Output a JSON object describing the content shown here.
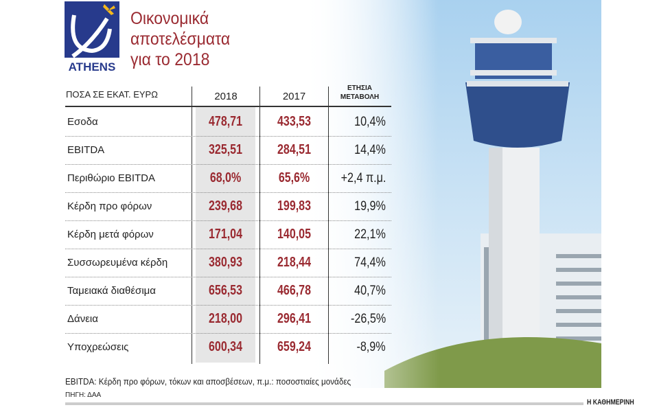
{
  "logo": {
    "text": "ATHENS",
    "color": "#273a8c",
    "accent": "#f5b81c"
  },
  "title": {
    "line1": "Οικονομικά",
    "line2": "αποτελέσματα",
    "line3": "για το 2018",
    "color": "#9a2a31"
  },
  "chart_data": {
    "type": "table",
    "title": "Οικονομικά αποτελέσματα για το 2018",
    "unit_label": "ΠΟΣΑ ΣΕ ΕΚΑΤ. ΕΥΡΩ",
    "columns": [
      "2018",
      "2017",
      "ΕΤΗΣΙΑ ΜΕΤΑΒΟΛΗ"
    ],
    "rows": [
      {
        "label": "Εσοδα",
        "v2018": "478,71",
        "v2017": "433,53",
        "change": "10,4%"
      },
      {
        "label": "EBITDA",
        "v2018": "325,51",
        "v2017": "284,51",
        "change": "14,4%"
      },
      {
        "label": "Περιθώριο EBITDA",
        "v2018": "68,0%",
        "v2017": "65,6%",
        "change": "+2,4 π.μ."
      },
      {
        "label": "Κέρδη προ φόρων",
        "v2018": "239,68",
        "v2017": "199,83",
        "change": "19,9%"
      },
      {
        "label": "Κέρδη μετά φόρων",
        "v2018": "171,04",
        "v2017": "140,05",
        "change": "22,1%"
      },
      {
        "label": "Συσσωρευμένα κέρδη",
        "v2018": "380,93",
        "v2017": "218,44",
        "change": "74,4%"
      },
      {
        "label": "Ταμειακά διαθέσιμα",
        "v2018": "656,53",
        "v2017": "466,78",
        "change": "40,7%"
      },
      {
        "label": "Δάνεια",
        "v2018": "218,00",
        "v2017": "296,41",
        "change": "-26,5%"
      },
      {
        "label": "Υποχρεώσεις",
        "v2018": "600,34",
        "v2017": "659,24",
        "change": "-8,9%"
      }
    ],
    "header_change_line1": "ΕΤΗΣΙΑ",
    "header_change_line2": "ΜΕΤΑΒΟΛΗ"
  },
  "footer": {
    "note": "EBITDA: Κέρδη προ φόρων, τόκων και αποσβέσεων, π.μ.: ποσοστιαίες μονάδες",
    "source": "ΠΗΓΗ: ΔΑΑ",
    "brand": "Η ΚΑΘΗΜΕΡΙΝΗ"
  }
}
